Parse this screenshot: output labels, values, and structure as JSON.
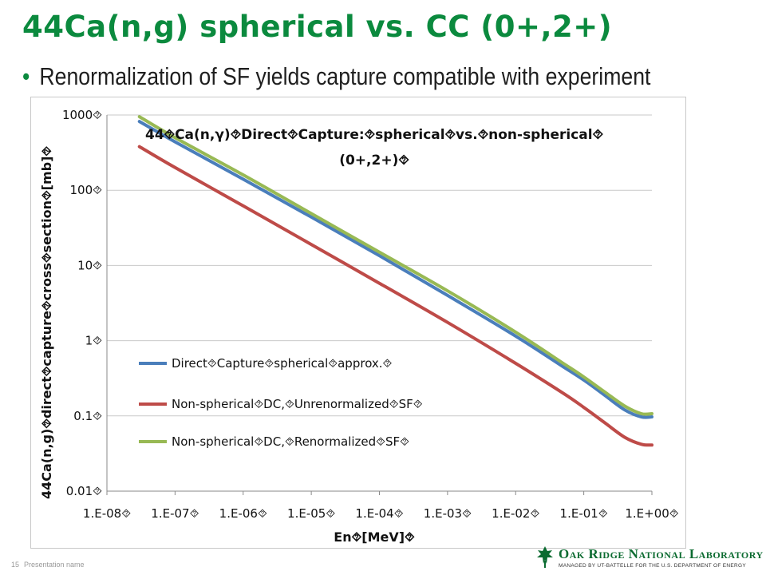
{
  "slide": {
    "title": "44Ca(n,g) spherical vs. CC (0+,2+)",
    "bullet": "Renormalization of SF yields capture compatible with experiment",
    "footer_page": "15",
    "footer_text": "Presentation name",
    "logo": {
      "name": "Oak Ridge National Laboratory",
      "subtitle": "MANAGED BY UT-BATTELLE FOR THE U.S. DEPARTMENT OF ENERGY"
    }
  },
  "colors": {
    "title": "#0b8a3e",
    "series_blue": "#4a7ebb",
    "series_red": "#be4b48",
    "series_green": "#98b954"
  },
  "chart_data": {
    "type": "line",
    "title_line1": "44⯑Ca(n,γ)⯑Direct⯑Capture:⯑spherical⯑vs.⯑non-spherical⯑",
    "title_line2": "(0+,2+)⯑",
    "xlabel": "En⯑[MeV]⯑",
    "ylabel": "44Ca(n,g)⯑direct⯑capture⯑cross⯑section⯑[mb]⯑",
    "xscale": "log",
    "yscale": "log",
    "xlim": [
      1e-08,
      1
    ],
    "ylim": [
      0.01,
      1000
    ],
    "x_ticks": [
      "1.E-08⯑",
      "1.E-07⯑",
      "1.E-06⯑",
      "1.E-05⯑",
      "1.E-04⯑",
      "1.E-03⯑",
      "1.E-02⯑",
      "1.E-01⯑",
      "1.E+00⯑"
    ],
    "y_ticks": [
      "1000⯑",
      "100⯑",
      "10⯑",
      "1⯑",
      "0.1⯑",
      "0.01⯑"
    ],
    "grid": "horizontal",
    "legend_position": "left-inside",
    "series": [
      {
        "name": "Direct⯑Capture⯑spherical⯑approx.⯑",
        "color": "#4a7ebb",
        "x": [
          3e-08,
          1e-07,
          1e-06,
          1e-05,
          0.0001,
          0.001,
          0.01,
          0.05,
          0.1,
          0.2,
          0.4,
          0.7,
          1.0
        ],
        "y": [
          820,
          440,
          140,
          44,
          13.5,
          4.0,
          1.15,
          0.45,
          0.3,
          0.19,
          0.12,
          0.097,
          0.097
        ]
      },
      {
        "name": "Non-spherical⯑DC,⯑Unrenormalized⯑SF⯑",
        "color": "#be4b48",
        "x": [
          3e-08,
          1e-07,
          1e-06,
          1e-05,
          0.0001,
          0.001,
          0.01,
          0.05,
          0.1,
          0.2,
          0.4,
          0.7,
          1.0
        ],
        "y": [
          380,
          200,
          62,
          19,
          5.8,
          1.75,
          0.5,
          0.2,
          0.13,
          0.082,
          0.052,
          0.042,
          0.041
        ]
      },
      {
        "name": "Non-spherical⯑DC,⯑Renormalized⯑SF⯑",
        "color": "#98b954",
        "x": [
          3e-08,
          1e-07,
          1e-06,
          1e-05,
          0.0001,
          0.001,
          0.01,
          0.05,
          0.1,
          0.2,
          0.4,
          0.7,
          1.0
        ],
        "y": [
          950,
          500,
          160,
          49,
          15,
          4.6,
          1.3,
          0.5,
          0.33,
          0.21,
          0.135,
          0.107,
          0.107
        ]
      }
    ]
  }
}
